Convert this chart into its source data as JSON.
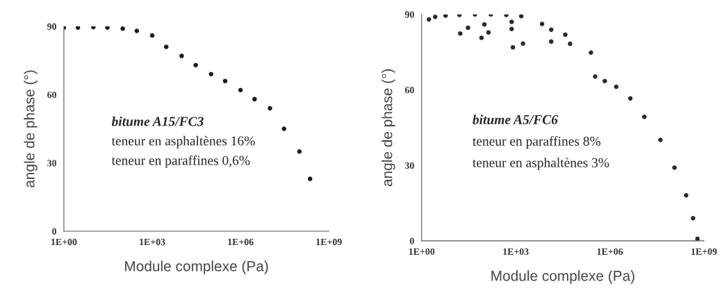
{
  "chart_data": [
    {
      "type": "scatter",
      "xlabel": "Module complexe (Pa)",
      "ylabel": "angle de phase (°)",
      "log": "x",
      "grid": false,
      "marker": "circle",
      "xlim": [
        1,
        1000000000
      ],
      "ylim": [
        0,
        90
      ],
      "xticks": [
        {
          "value": 1,
          "label": "1E+00"
        },
        {
          "value": 1000,
          "label": "1E+03"
        },
        {
          "value": 1000000,
          "label": "1E+06"
        },
        {
          "value": 1000000000,
          "label": "1E+09"
        }
      ],
      "yticks": [
        0,
        30,
        60,
        90
      ],
      "annotations": [
        "bitume A15/FC3",
        "teneur en asphaltènes 16%",
        "teneur en paraffines 0,6%"
      ],
      "series": [
        {
          "color": "#1a1a1a",
          "x": [
            1,
            3,
            10,
            30,
            100,
            300,
            1000,
            3000,
            10000,
            30000,
            100000,
            300000,
            1000000,
            3000000,
            10000000,
            30000000,
            100000000,
            230000000
          ],
          "values": [
            89.5,
            89.5,
            89.7,
            89.5,
            89,
            88,
            86,
            81,
            77,
            73,
            69,
            66,
            62,
            58,
            54,
            45,
            35,
            23
          ]
        }
      ]
    },
    {
      "type": "scatter",
      "xlabel": "Module complexe (Pa)",
      "ylabel": "angle de phase (°)",
      "log": "x",
      "grid": false,
      "marker": "circle",
      "xlim": [
        1,
        1000000000
      ],
      "ylim": [
        0,
        90
      ],
      "xticks": [
        {
          "value": 1,
          "label": "1E+00"
        },
        {
          "value": 1000,
          "label": "1E+03"
        },
        {
          "value": 1000000,
          "label": "1E+06"
        },
        {
          "value": 1000000000,
          "label": "1E+09"
        }
      ],
      "yticks": [
        0,
        30,
        60,
        90
      ],
      "annotations": [
        "bitume A5/FC6",
        "teneur en paraffines 8%",
        "teneur en asphaltènes 3%"
      ],
      "series": [
        {
          "color": "#2a2a2a",
          "x": [
            1.7,
            2.7,
            5.8,
            16,
            50,
            160,
            500,
            1500,
            17,
            30,
            100,
            740,
            6900,
            81,
            135,
            740,
            13500,
            38000,
            810,
            1700,
            13500,
            54000,
            250000,
            340000,
            690000,
            1600000,
            4500000,
            12600000,
            41000000,
            115000000,
            270000000,
            450000000,
            620000000
          ],
          "values": [
            88,
            89,
            89.5,
            89.8,
            90,
            90,
            89.8,
            89.3,
            82.4,
            84.7,
            86,
            87,
            86.2,
            80.7,
            82.8,
            84.2,
            83.9,
            81.9,
            76.9,
            78.4,
            79.2,
            78.3,
            74.8,
            65.3,
            63.5,
            61.2,
            56.6,
            49.3,
            40.1,
            29.1,
            18.1,
            9,
            0.8
          ]
        }
      ]
    }
  ]
}
